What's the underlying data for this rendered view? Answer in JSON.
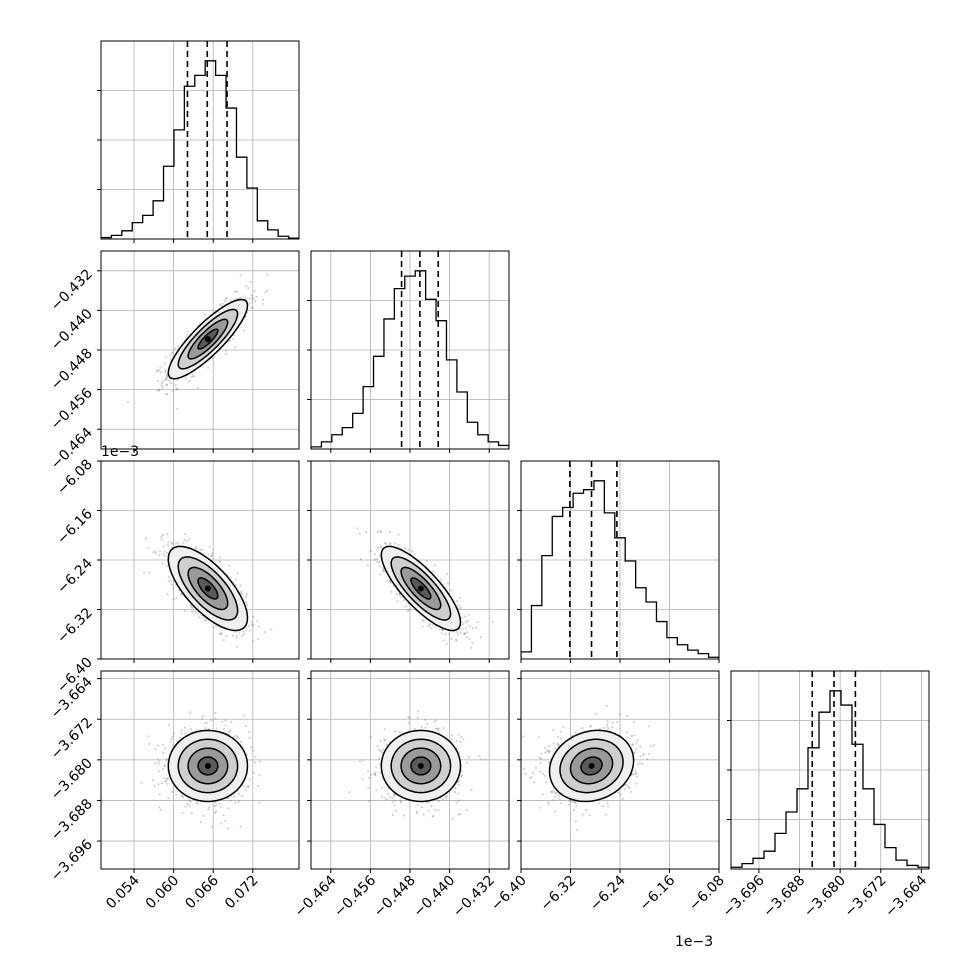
{
  "figure": {
    "background": "#ffffff",
    "offset_texts": [
      "1e−3",
      "1e−3"
    ]
  },
  "chart_data": {
    "type": "corner",
    "grid": true,
    "colors": {
      "line": "#000000",
      "grid": "#b0b0b0",
      "points": "#7f7f7f"
    },
    "parameters": [
      {
        "range": [
          0.049,
          0.079
        ],
        "ticks": [
          0.054,
          0.06,
          0.066,
          0.072
        ],
        "tick_labels": [
          "0.054",
          "0.060",
          "0.066",
          "0.072"
        ],
        "mean": 0.0652,
        "sd": 0.003,
        "quantiles": [
          0.0621,
          0.0651,
          0.0681
        ],
        "hist": [
          0.008,
          0.02,
          0.045,
          0.09,
          0.13,
          0.21,
          0.4,
          0.6,
          0.84,
          0.9,
          0.98,
          0.9,
          0.72,
          0.45,
          0.28,
          0.1,
          0.05,
          0.015,
          0.005
        ]
      },
      {
        "range": [
          -0.468,
          -0.428
        ],
        "ticks": [
          -0.464,
          -0.456,
          -0.448,
          -0.44,
          -0.432
        ],
        "tick_labels": [
          "−0.464",
          "−0.456",
          "−0.448",
          "−0.440",
          "−0.432"
        ],
        "mean": -0.4458,
        "sd": 0.004,
        "quantiles": [
          -0.4497,
          -0.446,
          -0.4423
        ],
        "hist": [
          0.012,
          0.04,
          0.08,
          0.12,
          0.2,
          0.35,
          0.52,
          0.73,
          0.9,
          0.97,
          1.0,
          0.84,
          0.72,
          0.5,
          0.32,
          0.15,
          0.08,
          0.04,
          0.02
        ]
      },
      {
        "range": [
          -6.4,
          -6.08
        ],
        "scale": 0.001,
        "offset_text": "1e−3",
        "ticks": [
          -6.4,
          -6.32,
          -6.24,
          -6.16,
          -6.08
        ],
        "tick_labels": [
          "−6.40",
          "−6.32",
          "−6.24",
          "−6.16",
          "−6.08"
        ],
        "mean": -6.286,
        "sd": 0.034,
        "quantiles": [
          -6.321,
          -6.286,
          -6.245
        ],
        "hist": [
          0.04,
          0.3,
          0.58,
          0.8,
          0.85,
          0.93,
          0.95,
          1.0,
          0.82,
          0.68,
          0.55,
          0.4,
          0.32,
          0.21,
          0.12,
          0.08,
          0.05,
          0.03,
          0.01
        ]
      },
      {
        "range": [
          -3.7015,
          -3.6625
        ],
        "scale": 0.001,
        "offset_text": "1e−3",
        "ticks": [
          -3.696,
          -3.688,
          -3.68,
          -3.672,
          -3.664
        ],
        "tick_labels": [
          "−3.696",
          "−3.688",
          "−3.680",
          "−3.672",
          "−3.664"
        ],
        "mean": -3.6812,
        "sd": 0.0035,
        "quantiles": [
          -3.6855,
          -3.6812,
          -3.677
        ],
        "hist": [
          0.01,
          0.03,
          0.06,
          0.1,
          0.2,
          0.32,
          0.45,
          0.68,
          0.88,
          1.0,
          0.92,
          0.7,
          0.45,
          0.25,
          0.12,
          0.05,
          0.02,
          0.01
        ]
      }
    ],
    "correlations": [
      {
        "i": 1,
        "j": 0,
        "r": 0.85
      },
      {
        "i": 2,
        "j": 0,
        "r": -0.7
      },
      {
        "i": 2,
        "j": 1,
        "r": -0.8
      },
      {
        "i": 3,
        "j": 0,
        "r": 0.0
      },
      {
        "i": 3,
        "j": 1,
        "r": 0.0
      },
      {
        "i": 3,
        "j": 2,
        "r": 0.15
      }
    ]
  }
}
